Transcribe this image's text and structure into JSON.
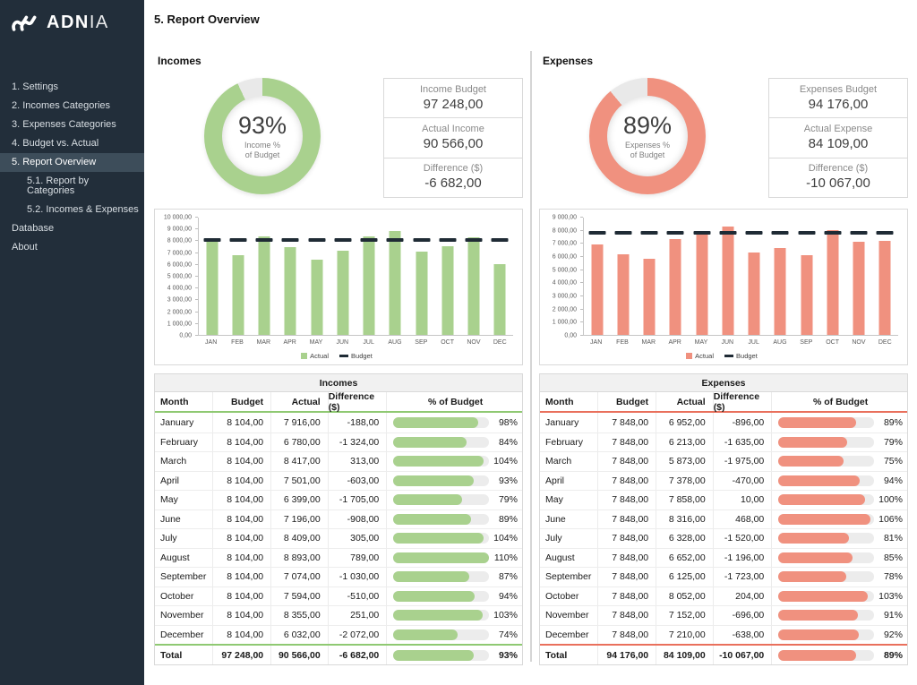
{
  "app": {
    "brand_bold": "ADN",
    "brand_light": "IA",
    "page_title": "5. Report Overview"
  },
  "icons": {
    "brand": "adnia-wave-logo"
  },
  "colors": {
    "sidebar_bg": "#222E3A",
    "sidebar_active_bg": "#3D4D5A",
    "sidebar_text": "#D9DFE4",
    "budget_marker": "#1F2B35",
    "panel_border": "#D9D9D9",
    "track": "#ECECEC",
    "title_row_bg": "#F1F1F1"
  },
  "sidebar": {
    "items": [
      {
        "label": "1. Settings",
        "indent": 0,
        "active": false
      },
      {
        "label": "2. Incomes Categories",
        "indent": 0,
        "active": false
      },
      {
        "label": "3. Expenses Categories",
        "indent": 0,
        "active": false
      },
      {
        "label": "4. Budget vs. Actual",
        "indent": 0,
        "active": false
      },
      {
        "label": "5. Report Overview",
        "indent": 0,
        "active": true
      },
      {
        "label": "5.1. Report by Categories",
        "indent": 1,
        "active": false
      },
      {
        "label": "5.2. Incomes & Expenses",
        "indent": 1,
        "active": false
      },
      {
        "label": "Database",
        "indent": 0,
        "active": false
      },
      {
        "label": "About",
        "indent": 0,
        "active": false
      }
    ]
  },
  "incomes": {
    "section_title": "Incomes",
    "accent": "#A9D18E",
    "accent_strong": "#8FC972",
    "donut": {
      "percent": 93,
      "value_label": "93%",
      "caption_top": "Income %",
      "caption_bottom": "of Budget",
      "rest_color": "#E9E9E9"
    },
    "stats": [
      {
        "label": "Income Budget",
        "value": "97 248,00"
      },
      {
        "label": "Actual Income",
        "value": "90 566,00"
      },
      {
        "label": "Difference ($)",
        "value": "-6 682,00"
      }
    ],
    "table": {
      "title": "Incomes",
      "columns": [
        "Month",
        "Budget",
        "Actual",
        "Difference ($)",
        "% of Budget"
      ],
      "rows": [
        {
          "month": "January",
          "budget": "8 104,00",
          "actual": "7 916,00",
          "difference": "-188,00",
          "pct": 98,
          "pct_label": "98%"
        },
        {
          "month": "February",
          "budget": "8 104,00",
          "actual": "6 780,00",
          "difference": "-1 324,00",
          "pct": 84,
          "pct_label": "84%"
        },
        {
          "month": "March",
          "budget": "8 104,00",
          "actual": "8 417,00",
          "difference": "313,00",
          "pct": 104,
          "pct_label": "104%"
        },
        {
          "month": "April",
          "budget": "8 104,00",
          "actual": "7 501,00",
          "difference": "-603,00",
          "pct": 93,
          "pct_label": "93%"
        },
        {
          "month": "May",
          "budget": "8 104,00",
          "actual": "6 399,00",
          "difference": "-1 705,00",
          "pct": 79,
          "pct_label": "79%"
        },
        {
          "month": "June",
          "budget": "8 104,00",
          "actual": "7 196,00",
          "difference": "-908,00",
          "pct": 89,
          "pct_label": "89%"
        },
        {
          "month": "July",
          "budget": "8 104,00",
          "actual": "8 409,00",
          "difference": "305,00",
          "pct": 104,
          "pct_label": "104%"
        },
        {
          "month": "August",
          "budget": "8 104,00",
          "actual": "8 893,00",
          "difference": "789,00",
          "pct": 110,
          "pct_label": "110%"
        },
        {
          "month": "September",
          "budget": "8 104,00",
          "actual": "7 074,00",
          "difference": "-1 030,00",
          "pct": 87,
          "pct_label": "87%"
        },
        {
          "month": "October",
          "budget": "8 104,00",
          "actual": "7 594,00",
          "difference": "-510,00",
          "pct": 94,
          "pct_label": "94%"
        },
        {
          "month": "November",
          "budget": "8 104,00",
          "actual": "8 355,00",
          "difference": "251,00",
          "pct": 103,
          "pct_label": "103%"
        },
        {
          "month": "December",
          "budget": "8 104,00",
          "actual": "6 032,00",
          "difference": "-2 072,00",
          "pct": 74,
          "pct_label": "74%"
        }
      ],
      "total": {
        "month": "Total",
        "budget": "97 248,00",
        "actual": "90 566,00",
        "difference": "-6 682,00",
        "pct": 93,
        "pct_label": "93%"
      }
    }
  },
  "expenses": {
    "section_title": "Expenses",
    "accent": "#F0917F",
    "accent_strong": "#E9705C",
    "donut": {
      "percent": 89,
      "value_label": "89%",
      "caption_top": "Expenses %",
      "caption_bottom": "of Budget",
      "rest_color": "#E9E9E9"
    },
    "stats": [
      {
        "label": "Expenses Budget",
        "value": "94 176,00"
      },
      {
        "label": "Actual Expense",
        "value": "84 109,00"
      },
      {
        "label": "Difference ($)",
        "value": "-10 067,00"
      }
    ],
    "table": {
      "title": "Expenses",
      "columns": [
        "Month",
        "Budget",
        "Actual",
        "Difference ($)",
        "% of Budget"
      ],
      "rows": [
        {
          "month": "January",
          "budget": "7 848,00",
          "actual": "6 952,00",
          "difference": "-896,00",
          "pct": 89,
          "pct_label": "89%"
        },
        {
          "month": "February",
          "budget": "7 848,00",
          "actual": "6 213,00",
          "difference": "-1 635,00",
          "pct": 79,
          "pct_label": "79%"
        },
        {
          "month": "March",
          "budget": "7 848,00",
          "actual": "5 873,00",
          "difference": "-1 975,00",
          "pct": 75,
          "pct_label": "75%"
        },
        {
          "month": "April",
          "budget": "7 848,00",
          "actual": "7 378,00",
          "difference": "-470,00",
          "pct": 94,
          "pct_label": "94%"
        },
        {
          "month": "May",
          "budget": "7 848,00",
          "actual": "7 858,00",
          "difference": "10,00",
          "pct": 100,
          "pct_label": "100%"
        },
        {
          "month": "June",
          "budget": "7 848,00",
          "actual": "8 316,00",
          "difference": "468,00",
          "pct": 106,
          "pct_label": "106%"
        },
        {
          "month": "July",
          "budget": "7 848,00",
          "actual": "6 328,00",
          "difference": "-1 520,00",
          "pct": 81,
          "pct_label": "81%"
        },
        {
          "month": "August",
          "budget": "7 848,00",
          "actual": "6 652,00",
          "difference": "-1 196,00",
          "pct": 85,
          "pct_label": "85%"
        },
        {
          "month": "September",
          "budget": "7 848,00",
          "actual": "6 125,00",
          "difference": "-1 723,00",
          "pct": 78,
          "pct_label": "78%"
        },
        {
          "month": "October",
          "budget": "7 848,00",
          "actual": "8 052,00",
          "difference": "204,00",
          "pct": 103,
          "pct_label": "103%"
        },
        {
          "month": "November",
          "budget": "7 848,00",
          "actual": "7 152,00",
          "difference": "-696,00",
          "pct": 91,
          "pct_label": "91%"
        },
        {
          "month": "December",
          "budget": "7 848,00",
          "actual": "7 210,00",
          "difference": "-638,00",
          "pct": 92,
          "pct_label": "92%"
        }
      ],
      "total": {
        "month": "Total",
        "budget": "94 176,00",
        "actual": "84 109,00",
        "difference": "-10 067,00",
        "pct": 89,
        "pct_label": "89%"
      }
    }
  },
  "chart_data": [
    {
      "id": "incomes",
      "type": "bar",
      "title": "",
      "categories": [
        "JAN",
        "FEB",
        "MAR",
        "APR",
        "MAY",
        "JUN",
        "JUL",
        "AUG",
        "SEP",
        "OCT",
        "NOV",
        "DEC"
      ],
      "series": [
        {
          "name": "Actual",
          "marker": "square",
          "values": [
            7916,
            6780,
            8417,
            7501,
            6399,
            7196,
            8409,
            8893,
            7074,
            7594,
            8355,
            6032
          ]
        },
        {
          "name": "Budget",
          "marker": "dash",
          "values": [
            8104,
            8104,
            8104,
            8104,
            8104,
            8104,
            8104,
            8104,
            8104,
            8104,
            8104,
            8104
          ]
        }
      ],
      "xlabel": "",
      "ylabel": "",
      "ylim": [
        0,
        10000
      ],
      "ytick_labels": [
        "0,00",
        "1 000,00",
        "2 000,00",
        "3 000,00",
        "4 000,00",
        "5 000,00",
        "6 000,00",
        "7 000,00",
        "8 000,00",
        "9 000,00",
        "10 000,00"
      ],
      "grid": false,
      "legend_position": "bottom"
    },
    {
      "id": "expenses",
      "type": "bar",
      "title": "",
      "categories": [
        "JAN",
        "FEB",
        "MAR",
        "APR",
        "MAY",
        "JUN",
        "JUL",
        "AUG",
        "SEP",
        "OCT",
        "NOV",
        "DEC"
      ],
      "series": [
        {
          "name": "Actual",
          "marker": "square",
          "values": [
            6952,
            6213,
            5873,
            7378,
            7858,
            8316,
            6328,
            6652,
            6125,
            8052,
            7152,
            7210
          ]
        },
        {
          "name": "Budget",
          "marker": "dash",
          "values": [
            7848,
            7848,
            7848,
            7848,
            7848,
            7848,
            7848,
            7848,
            7848,
            7848,
            7848,
            7848
          ]
        }
      ],
      "xlabel": "",
      "ylabel": "",
      "ylim": [
        0,
        9000
      ],
      "ytick_labels": [
        "0,00",
        "1 000,00",
        "2 000,00",
        "3 000,00",
        "4 000,00",
        "5 000,00",
        "6 000,00",
        "7 000,00",
        "8 000,00",
        "9 000,00"
      ],
      "grid": false,
      "legend_position": "bottom"
    }
  ]
}
